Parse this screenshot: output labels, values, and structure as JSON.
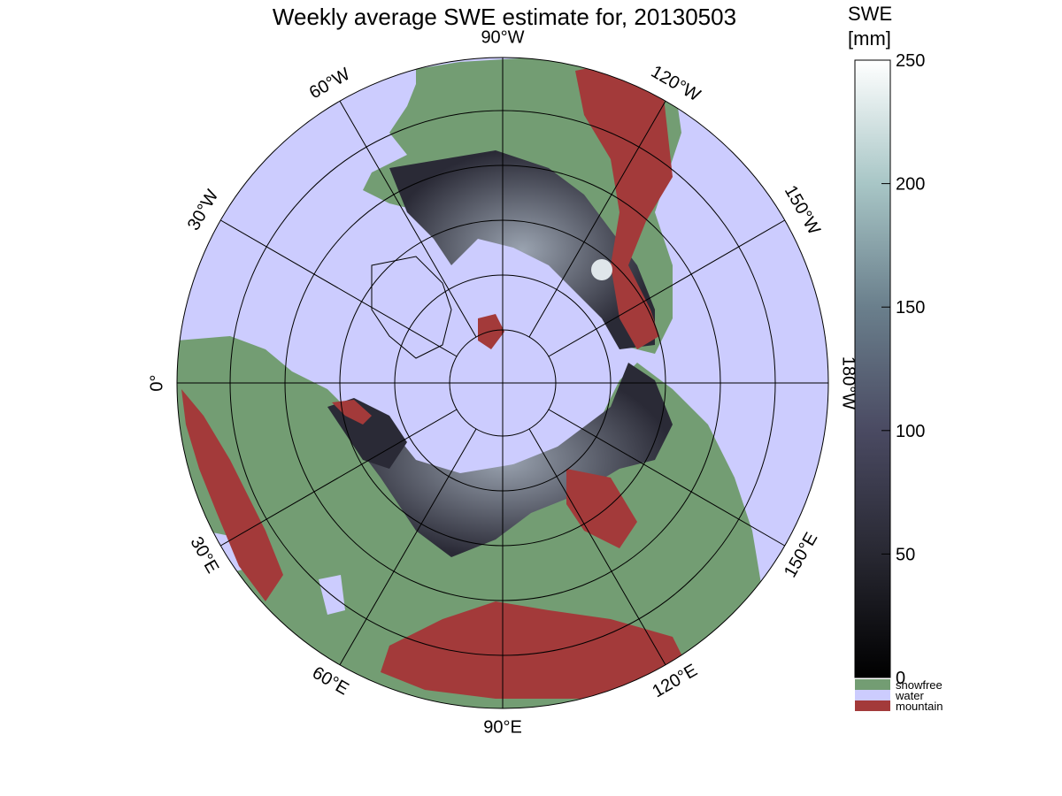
{
  "title": "Weekly average SWE estimate for, 20130503",
  "colorbar": {
    "title_line1": "SWE",
    "title_line2": "[mm]",
    "ticks": [
      "250",
      "200",
      "150",
      "100",
      "50",
      "0"
    ],
    "tick_values": [
      250,
      200,
      150,
      100,
      50,
      0
    ],
    "range": [
      0,
      250
    ],
    "legend": [
      {
        "label": "snowfree",
        "color": "#739d73"
      },
      {
        "label": "water",
        "color": "#ccccfe"
      },
      {
        "label": "mountain",
        "color": "#a33a3a"
      }
    ]
  },
  "map": {
    "projection": "polar stereographic (north)",
    "colors": {
      "ocean": "#ccccfe",
      "land": "#739d73",
      "mountain": "#a33a3a",
      "snow_low": "#1c1c26",
      "snow_high": "#8a93a0"
    },
    "longitude_labels": [
      {
        "deg": 90,
        "text": "90°W"
      },
      {
        "deg": 120,
        "text": "120°W"
      },
      {
        "deg": 150,
        "text": "150°W"
      },
      {
        "deg": 180,
        "text": "180°W"
      },
      {
        "deg": 210,
        "text": "150°E"
      },
      {
        "deg": 240,
        "text": "120°E"
      },
      {
        "deg": 270,
        "text": "90°E"
      },
      {
        "deg": 300,
        "text": "60°E"
      },
      {
        "deg": 330,
        "text": "30°E"
      },
      {
        "deg": 0,
        "text": "0°"
      },
      {
        "deg": 30,
        "text": "30°W"
      },
      {
        "deg": 60,
        "text": "60°W"
      }
    ]
  }
}
